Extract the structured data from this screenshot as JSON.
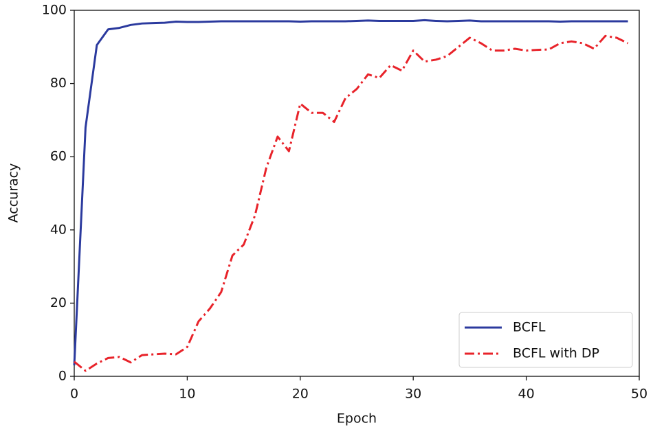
{
  "chart_data": {
    "type": "line",
    "xlabel": "Epoch",
    "ylabel": "Accuracy",
    "x": [
      0,
      1,
      2,
      3,
      4,
      5,
      6,
      7,
      8,
      9,
      10,
      11,
      12,
      13,
      14,
      15,
      16,
      17,
      18,
      19,
      20,
      21,
      22,
      23,
      24,
      25,
      26,
      27,
      28,
      29,
      30,
      31,
      32,
      33,
      34,
      35,
      36,
      37,
      38,
      39,
      40,
      41,
      42,
      43,
      44,
      45,
      46,
      47,
      48,
      49
    ],
    "series": [
      {
        "name": "BCFL",
        "color": "#2b3a9e",
        "dash": "solid",
        "values": [
          3,
          68,
          90.5,
          94.8,
          95.2,
          96,
          96.4,
          96.5,
          96.6,
          96.9,
          96.8,
          96.8,
          96.9,
          97,
          97,
          97,
          97,
          97,
          97,
          97,
          96.9,
          97,
          97,
          97,
          97,
          97.1,
          97.2,
          97.1,
          97.1,
          97.1,
          97.1,
          97.3,
          97.1,
          97,
          97.1,
          97.2,
          97,
          97,
          97,
          97,
          97,
          97,
          97,
          96.9,
          97,
          97,
          97,
          97,
          97,
          97
        ]
      },
      {
        "name": "BCFL with DP",
        "color": "#e8232a",
        "dash": "dashdot",
        "values": [
          4,
          1.5,
          3.5,
          5,
          5.3,
          3.8,
          5.8,
          6,
          6.2,
          6,
          8,
          15,
          18.5,
          23,
          33,
          36,
          44,
          57,
          65.5,
          61.5,
          74.5,
          72,
          72,
          69.5,
          76,
          78.5,
          82.5,
          81.5,
          85,
          83.5,
          89,
          86,
          86.5,
          87.5,
          90,
          92.5,
          91,
          89,
          89,
          89.5,
          89,
          89.2,
          89.3,
          91,
          91.5,
          91,
          89.5,
          93,
          92.5,
          91
        ]
      }
    ],
    "xlim": [
      0,
      50
    ],
    "xticks": [
      0,
      10,
      20,
      30,
      40,
      50
    ],
    "ylim": [
      0,
      100
    ],
    "yticks": [
      0,
      20,
      40,
      60,
      80,
      100
    ],
    "grid": false,
    "legend": "lower right"
  }
}
